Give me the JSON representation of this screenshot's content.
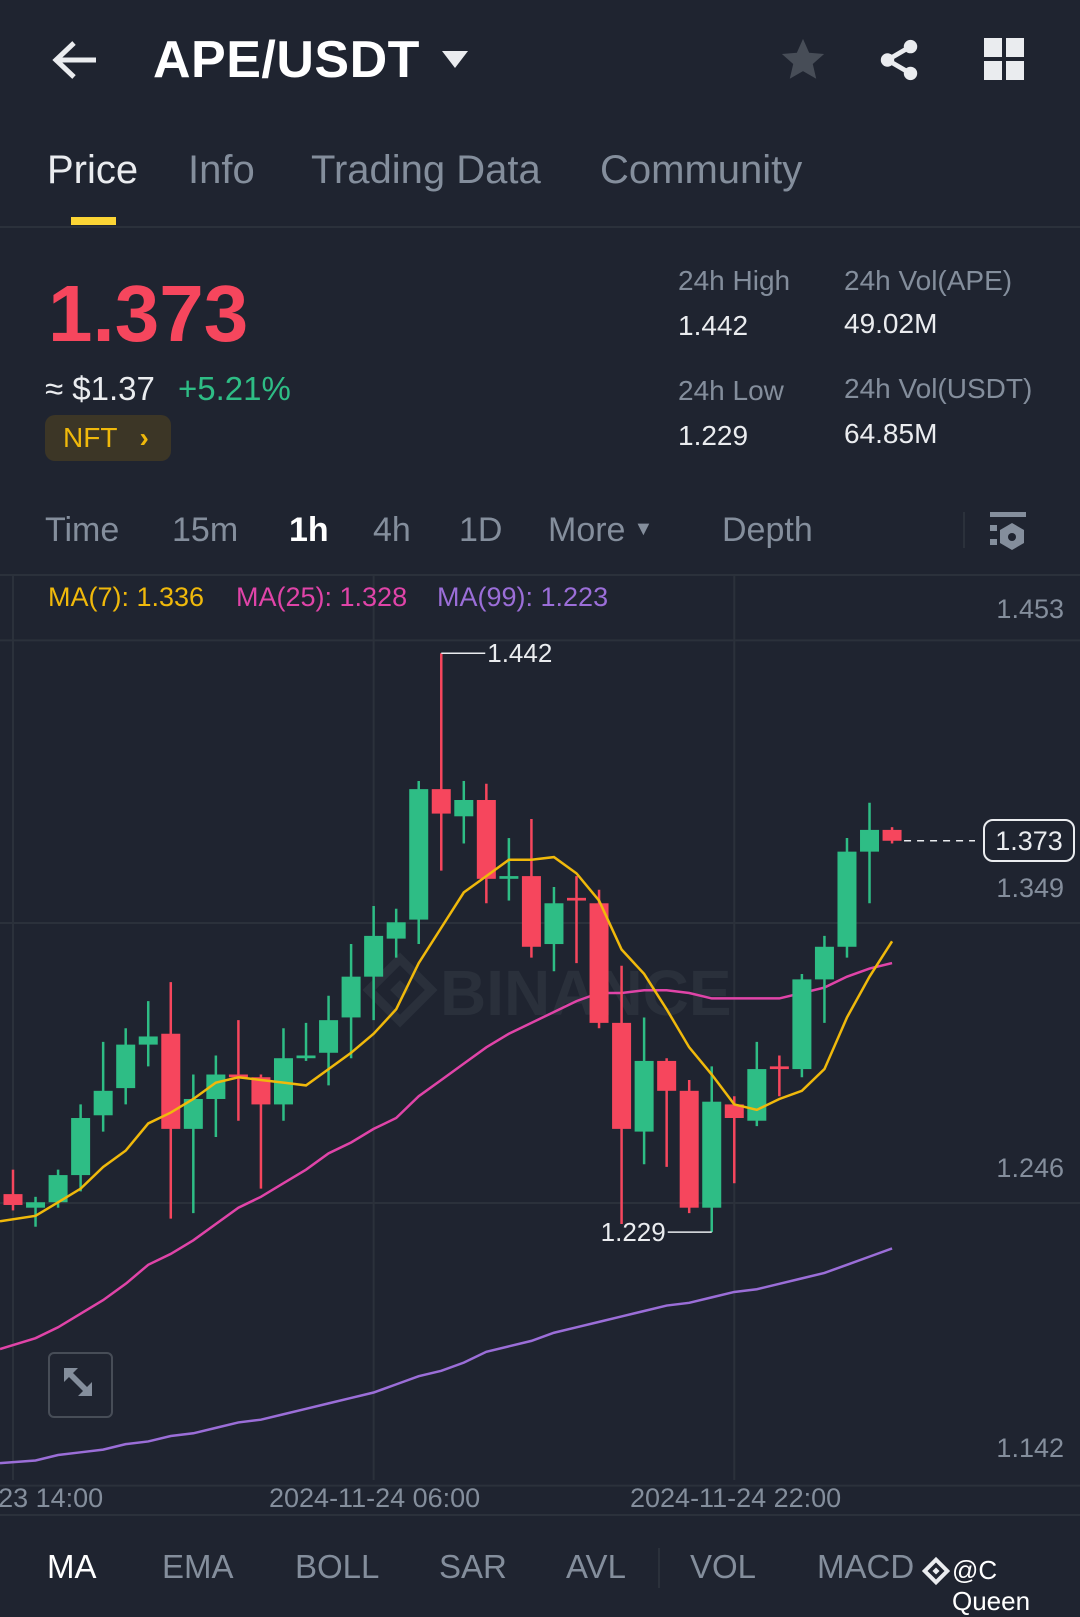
{
  "header": {
    "title": "APE/USDT",
    "icons": [
      "back-arrow-icon",
      "caret-down-icon",
      "star-icon",
      "share-icon",
      "grid-icon"
    ]
  },
  "tabs": [
    {
      "label": "Price",
      "active": true
    },
    {
      "label": "Info"
    },
    {
      "label": "Trading Data"
    },
    {
      "label": "Community"
    }
  ],
  "ticker": {
    "last_price": "1.373",
    "fiat_price": "≈ $1.37",
    "change": "+5.21%",
    "tag": "NFT",
    "stats": [
      {
        "label": "24h High",
        "value": "1.442"
      },
      {
        "label": "24h Vol(APE)",
        "value": "49.02M"
      },
      {
        "label": "24h Low",
        "value": "1.229"
      },
      {
        "label": "24h Vol(USDT)",
        "value": "64.85M"
      }
    ]
  },
  "timeframes": [
    {
      "label": "Time"
    },
    {
      "label": "15m"
    },
    {
      "label": "1h",
      "active": true
    },
    {
      "label": "4h"
    },
    {
      "label": "1D"
    },
    {
      "label": "More"
    },
    {
      "label": "Depth"
    }
  ],
  "colors": {
    "up": "#2ebd85",
    "down": "#f6465d",
    "ma7": "#f0b90b",
    "ma25": "#e044a8",
    "ma99": "#9b6ed8",
    "accent": "#fcd535"
  },
  "indicators": [
    {
      "label": "MA",
      "active": true
    },
    {
      "label": "EMA"
    },
    {
      "label": "BOLL"
    },
    {
      "label": "SAR"
    },
    {
      "label": "AVL"
    },
    {
      "label": "VOL"
    },
    {
      "label": "MACD"
    }
  ],
  "watermark": {
    "chart": "BINANCE",
    "overlay": "@C Queen"
  },
  "chart_data": {
    "type": "candlestick",
    "interval": "1h",
    "start_time": "2024-11-23 14:00",
    "ylim": [
      1.142,
      1.453
    ],
    "y_ticks": [
      "1.453",
      "1.349",
      "1.246",
      "1.142"
    ],
    "x_ticks": [
      {
        "index": 0,
        "label": "2024-11-23 14:00"
      },
      {
        "index": 16,
        "label": "2024-11-24 06:00"
      },
      {
        "index": 32,
        "label": "2024-11-24 22:00"
      }
    ],
    "legend": {
      "ma7": "MA(7): 1.336",
      "ma25": "MA(25): 1.328",
      "ma99": "MA(99): 1.223"
    },
    "current_price": "1.373",
    "high_marker": {
      "index": 19,
      "label": "1.442"
    },
    "low_marker": {
      "index": 31,
      "label": "1.229"
    },
    "ohlc": [
      [
        1.243,
        1.252,
        1.237,
        1.239
      ],
      [
        1.238,
        1.242,
        1.231,
        1.24
      ],
      [
        1.24,
        1.252,
        1.238,
        1.25
      ],
      [
        1.25,
        1.276,
        1.244,
        1.271
      ],
      [
        1.272,
        1.299,
        1.266,
        1.281
      ],
      [
        1.282,
        1.304,
        1.276,
        1.298
      ],
      [
        1.298,
        1.314,
        1.29,
        1.301
      ],
      [
        1.302,
        1.321,
        1.234,
        1.267
      ],
      [
        1.267,
        1.287,
        1.236,
        1.278
      ],
      [
        1.278,
        1.294,
        1.264,
        1.287
      ],
      [
        1.287,
        1.307,
        1.27,
        1.286
      ],
      [
        1.286,
        1.287,
        1.245,
        1.276
      ],
      [
        1.276,
        1.304,
        1.27,
        1.293
      ],
      [
        1.293,
        1.306,
        1.292,
        1.294
      ],
      [
        1.295,
        1.316,
        1.283,
        1.307
      ],
      [
        1.308,
        1.335,
        1.293,
        1.323
      ],
      [
        1.323,
        1.349,
        1.307,
        1.338
      ],
      [
        1.337,
        1.348,
        1.33,
        1.343
      ],
      [
        1.344,
        1.395,
        1.335,
        1.392
      ],
      [
        1.392,
        1.442,
        1.362,
        1.383
      ],
      [
        1.382,
        1.395,
        1.372,
        1.388
      ],
      [
        1.388,
        1.394,
        1.35,
        1.359
      ],
      [
        1.359,
        1.374,
        1.351,
        1.36
      ],
      [
        1.36,
        1.381,
        1.33,
        1.334
      ],
      [
        1.335,
        1.356,
        1.325,
        1.35
      ],
      [
        1.352,
        1.36,
        1.328,
        1.351
      ],
      [
        1.35,
        1.355,
        1.304,
        1.306
      ],
      [
        1.306,
        1.327,
        1.232,
        1.267
      ],
      [
        1.266,
        1.308,
        1.254,
        1.292
      ],
      [
        1.292,
        1.293,
        1.253,
        1.281
      ],
      [
        1.281,
        1.285,
        1.236,
        1.238
      ],
      [
        1.238,
        1.29,
        1.229,
        1.277
      ],
      [
        1.276,
        1.279,
        1.247,
        1.271
      ],
      [
        1.27,
        1.299,
        1.268,
        1.289
      ],
      [
        1.29,
        1.294,
        1.279,
        1.289
      ],
      [
        1.289,
        1.324,
        1.286,
        1.322
      ],
      [
        1.322,
        1.338,
        1.306,
        1.334
      ],
      [
        1.334,
        1.374,
        1.33,
        1.369
      ],
      [
        1.369,
        1.387,
        1.35,
        1.377
      ],
      [
        1.377,
        1.378,
        1.372,
        1.373
      ]
    ],
    "ma7": [
      1.233,
      1.235,
      1.24,
      1.245,
      1.253,
      1.259,
      1.269,
      1.273,
      1.278,
      1.284,
      1.286,
      1.285,
      1.284,
      1.283,
      1.289,
      1.295,
      1.302,
      1.311,
      1.328,
      1.341,
      1.354,
      1.36,
      1.366,
      1.366,
      1.367,
      1.361,
      1.351,
      1.333,
      1.324,
      1.311,
      1.297,
      1.287,
      1.276,
      1.274,
      1.278,
      1.281,
      1.289,
      1.308,
      1.323,
      1.336
    ],
    "ma25": [
      1.186,
      1.19,
      1.194,
      1.199,
      1.204,
      1.21,
      1.217,
      1.221,
      1.226,
      1.232,
      1.238,
      1.242,
      1.247,
      1.252,
      1.258,
      1.262,
      1.267,
      1.271,
      1.279,
      1.285,
      1.291,
      1.297,
      1.302,
      1.306,
      1.31,
      1.314,
      1.317,
      1.317,
      1.318,
      1.318,
      1.317,
      1.315,
      1.315,
      1.315,
      1.315,
      1.317,
      1.319,
      1.323,
      1.326,
      1.328
    ],
    "ma99": [
      1.144,
      1.145,
      1.147,
      1.148,
      1.149,
      1.151,
      1.152,
      1.154,
      1.155,
      1.157,
      1.159,
      1.16,
      1.162,
      1.164,
      1.166,
      1.168,
      1.17,
      1.173,
      1.176,
      1.178,
      1.181,
      1.185,
      1.187,
      1.189,
      1.192,
      1.194,
      1.196,
      1.198,
      1.2,
      1.202,
      1.203,
      1.205,
      1.207,
      1.208,
      1.21,
      1.212,
      1.214,
      1.217,
      1.22,
      1.223
    ]
  }
}
